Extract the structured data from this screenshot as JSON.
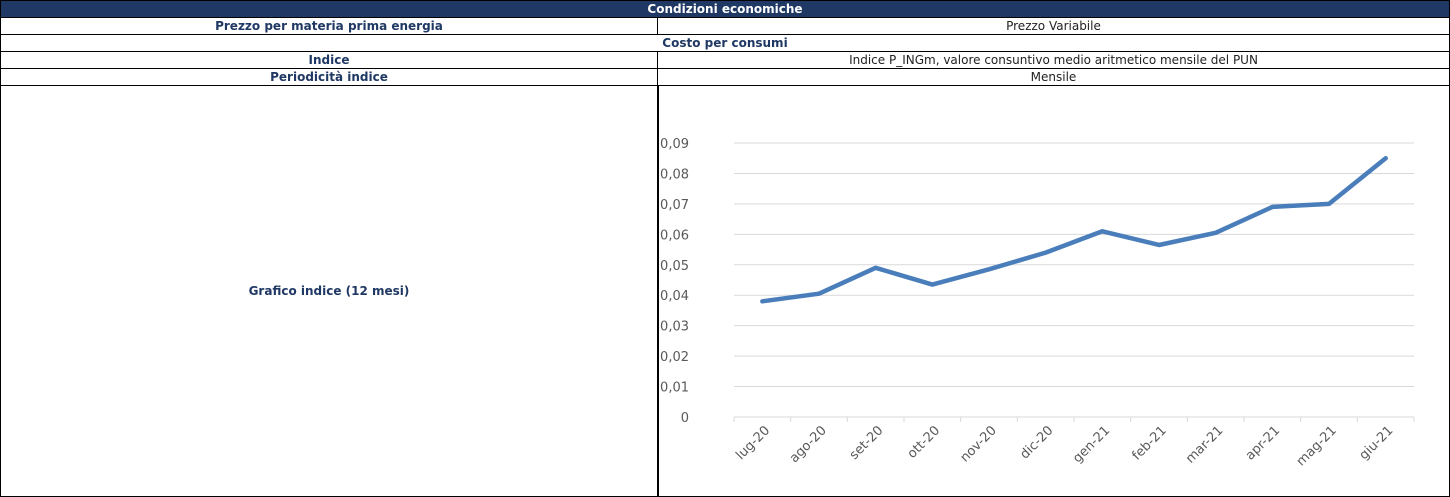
{
  "table": {
    "title": "Condizioni economiche",
    "rows": [
      [
        "Prezzo per materia prima energia",
        "Prezzo Variabile"
      ],
      [
        "Costo per consumi"
      ],
      [
        "Indice",
        "Indice P_INGm, valore consuntivo medio aritmetico mensile del PUN"
      ],
      [
        "Periodicità indice",
        "Mensile"
      ],
      [
        "Grafico indice (12 mesi)"
      ]
    ]
  },
  "chart_data": {
    "type": "line",
    "categories": [
      "lug-20",
      "ago-20",
      "set-20",
      "ott-20",
      "nov-20",
      "dic-20",
      "gen-21",
      "feb-21",
      "mar-21",
      "apr-21",
      "mag-21",
      "giu-21"
    ],
    "series": [
      {
        "name": "Indice",
        "color": "#4a7ebb",
        "values": [
          0.038,
          0.0405,
          0.049,
          0.0435,
          0.0485,
          0.054,
          0.061,
          0.0565,
          0.0605,
          0.069,
          0.07,
          0.085
        ]
      }
    ],
    "ylim": [
      0,
      0.09
    ],
    "yticks": [
      0,
      {
        "value": 0.01,
        "label": "0,01"
      },
      {
        "value": 0.02,
        "label": "0,02"
      },
      {
        "value": 0.03,
        "label": "0,03"
      },
      {
        "value": 0.04,
        "label": "0,04"
      },
      {
        "value": 0.05,
        "label": "0,05"
      },
      {
        "value": 0.06,
        "label": "0,06"
      },
      {
        "value": 0.07,
        "label": "0,07"
      },
      {
        "value": 0.08,
        "label": "0,08"
      },
      {
        "value": 0.09,
        "label": "0,09"
      }
    ],
    "grid": true
  }
}
